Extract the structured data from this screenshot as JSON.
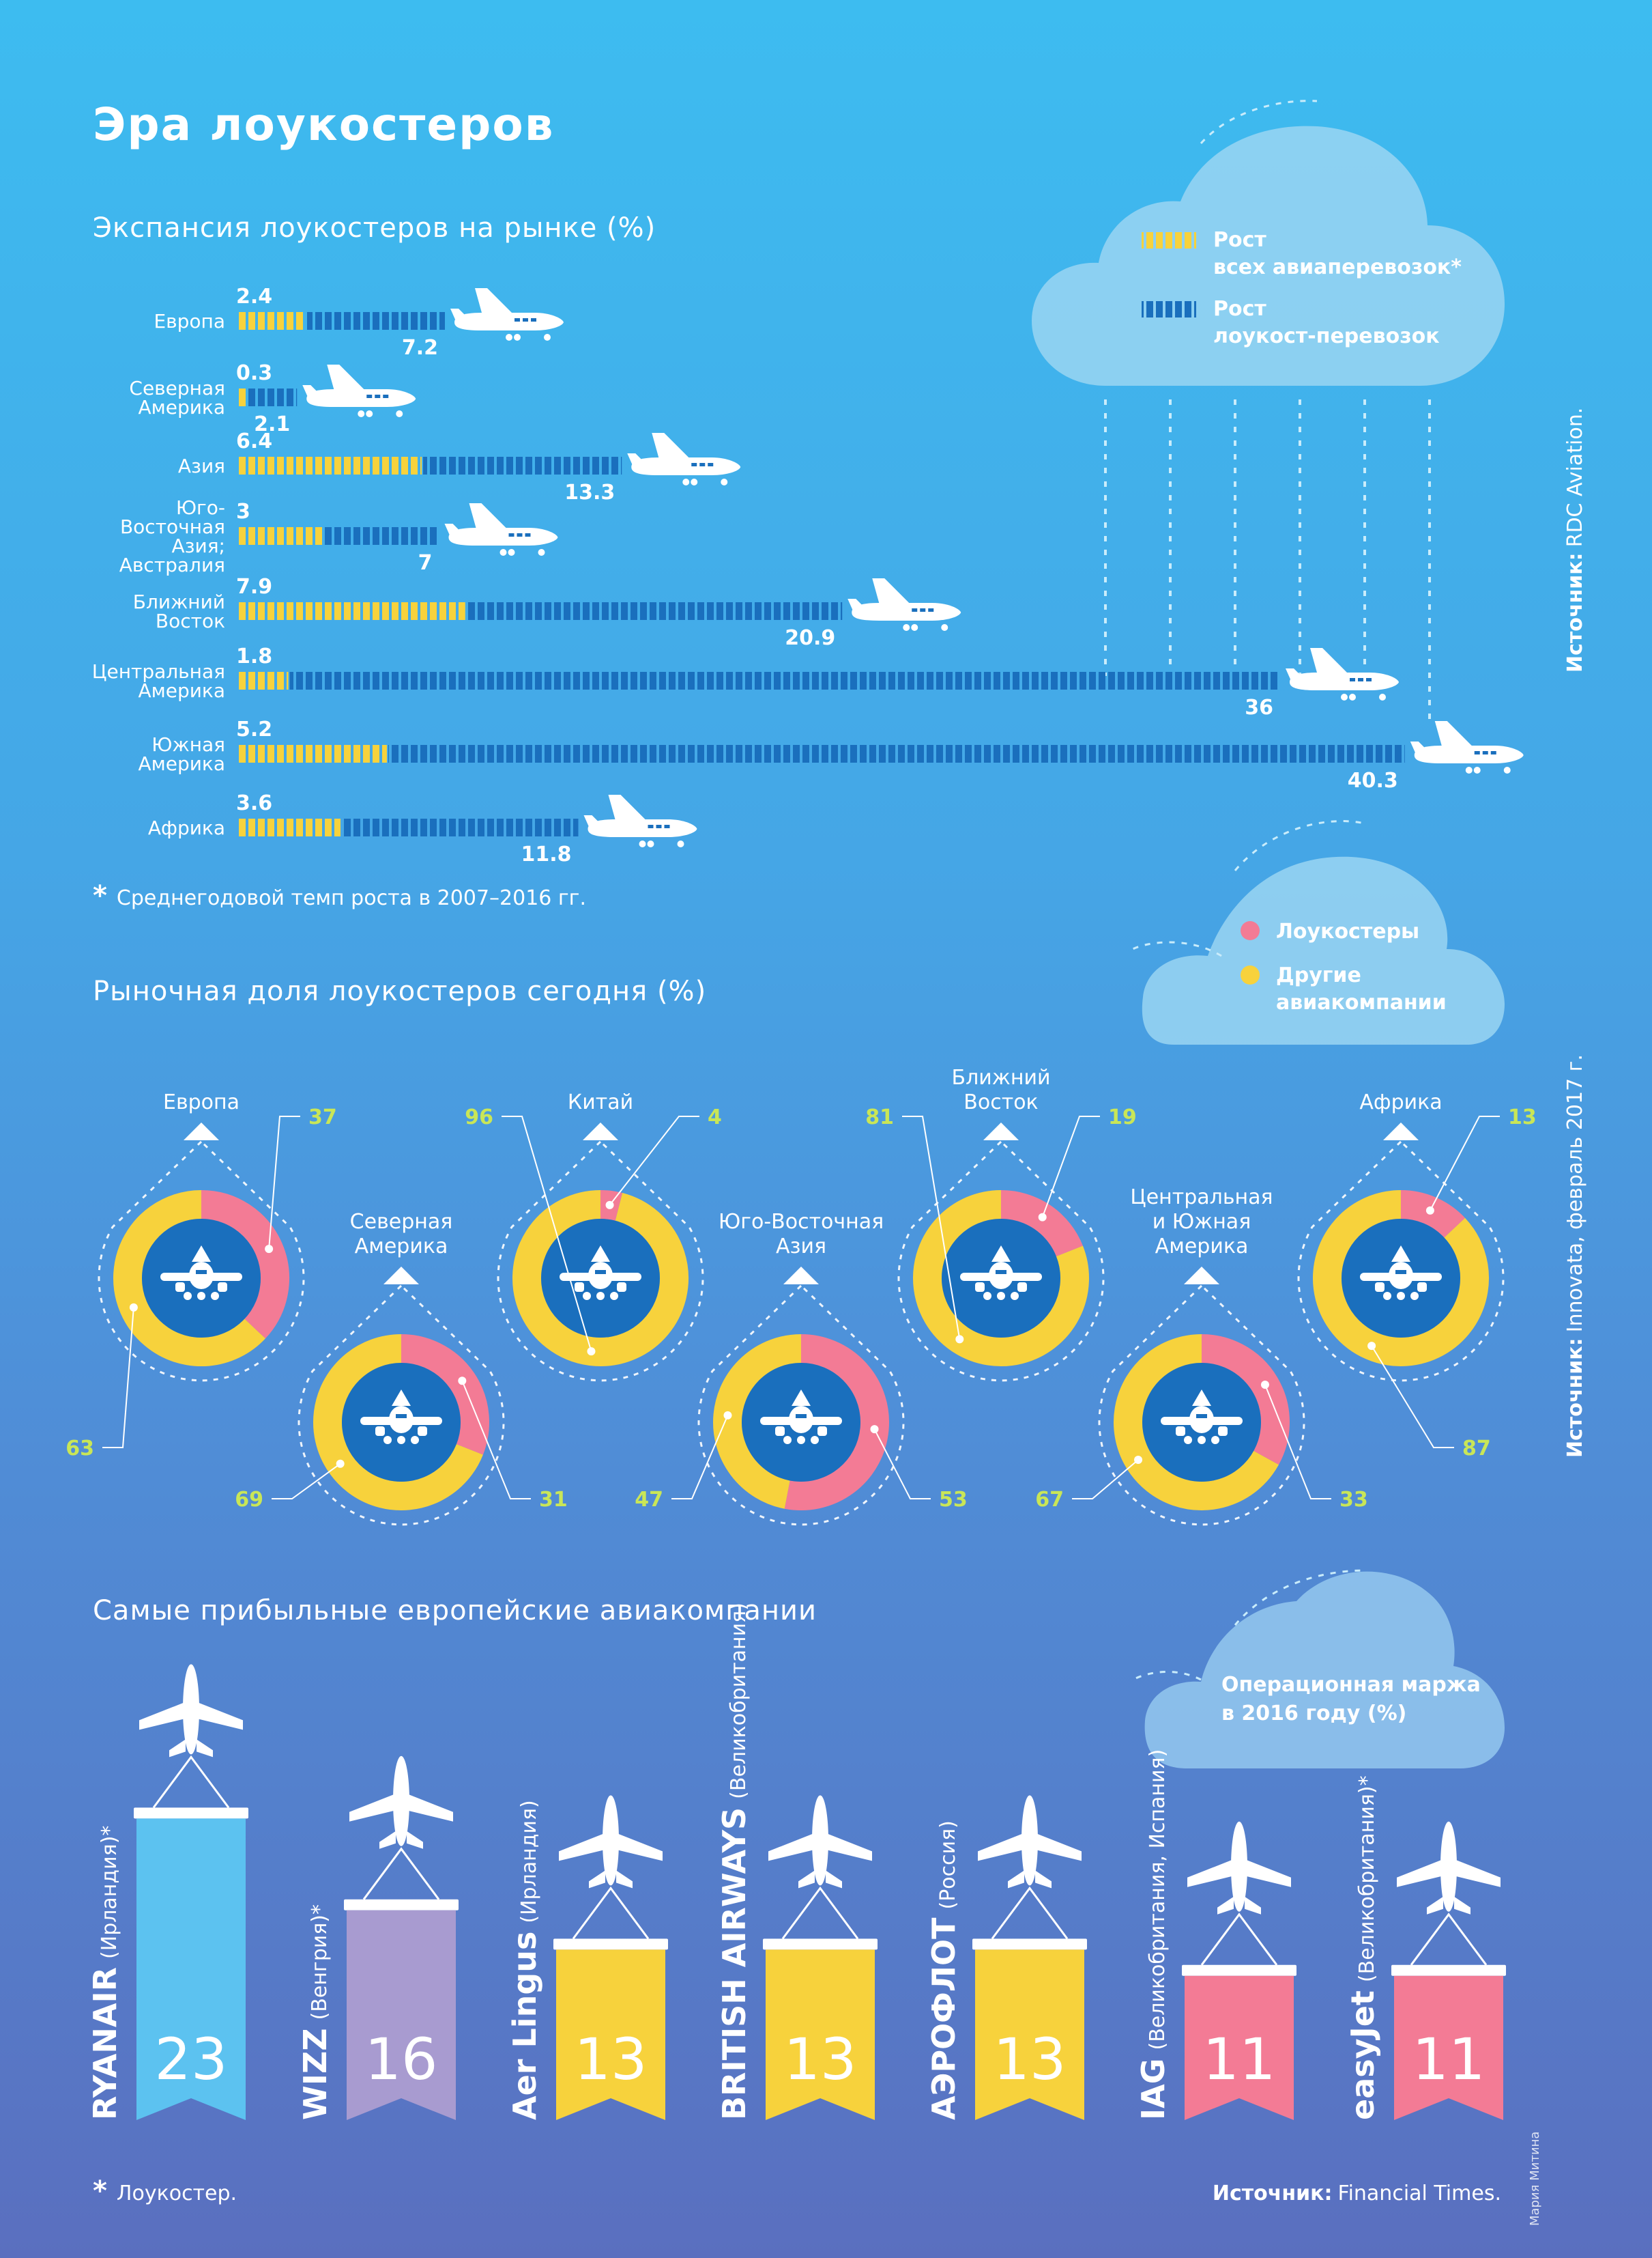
{
  "header": {
    "title": "Эра лоукостеров"
  },
  "section1": {
    "title": "Экспансия лоукостеров на рынке (%)",
    "legend": {
      "total_line1": "Рост",
      "total_line2": "всех авиаперевозок*",
      "lowcost_line1": "Рост",
      "lowcost_line2": "лоукост-перевозок"
    },
    "footnote_mark": "*",
    "footnote": "Среднегодовой темп роста в 2007–2016 гг."
  },
  "section2": {
    "title": "Рыночная доля лоукостеров сегодня (%)",
    "legend": {
      "lowcost": "Лоукостеры",
      "other_line1": "Другие",
      "other_line2": "авиакомпании"
    }
  },
  "section3": {
    "title": "Самые прибыльные европейские авиакомпании",
    "legend_line1": "Операционная маржа",
    "legend_line2": "в 2016 году (%)",
    "footnote_mark": "*",
    "footnote": "Лоукостер."
  },
  "sources": {
    "label": "Источник:",
    "s1": "RDC Aviation.",
    "s2": "Innovata, февраль 2017 г.",
    "s3": "Financial Times."
  },
  "credit": "Мария Митина",
  "colors": {
    "total_growth": "#f7d23c",
    "lowcost_growth": "#1a6fbd",
    "lowcost_share": "#f37b95",
    "other_share": "#f7d23c",
    "donut_center": "#1a6fbd",
    "value_labels": "#c9e657"
  },
  "chart_data": [
    {
      "type": "bar",
      "title": "Экспансия лоукостеров на рынке (%)",
      "categories": [
        [
          "Европа"
        ],
        [
          "Северная",
          "Америка"
        ],
        [
          "Азия"
        ],
        [
          "Юго-",
          "Восточная",
          "Азия;",
          "Австралия"
        ],
        [
          "Ближний",
          "Восток"
        ],
        [
          "Центральная",
          "Америка"
        ],
        [
          "Южная",
          "Америка"
        ],
        [
          "Африка"
        ]
      ],
      "series": [
        {
          "name": "Рост всех авиаперевозок*",
          "values": [
            2.4,
            0.3,
            6.4,
            3,
            7.9,
            1.8,
            5.2,
            3.6
          ]
        },
        {
          "name": "Рост лоукост-перевозок",
          "values": [
            7.2,
            2.1,
            13.3,
            7,
            20.9,
            36,
            40.3,
            11.8
          ]
        }
      ],
      "value_labels_total": [
        "2.4",
        "0.3",
        "6.4",
        "3",
        "7.9",
        "1.8",
        "5.2",
        "3.6"
      ],
      "value_labels_lowcost": [
        "7.2",
        "2.1",
        "13.3",
        "7",
        "20.9",
        "36",
        "40.3",
        "11.8"
      ]
    },
    {
      "type": "pie",
      "title": "Рыночная доля лоукостеров сегодня (%)",
      "series_names": [
        "Лоукостеры",
        "Другие авиакомпании"
      ],
      "regions": [
        {
          "label": [
            "Европа"
          ],
          "lowcost": 37,
          "other": 63
        },
        {
          "label": [
            "Северная",
            "Америка"
          ],
          "lowcost": 31,
          "other": 69
        },
        {
          "label": [
            "Китай"
          ],
          "lowcost": 4,
          "other": 96
        },
        {
          "label": [
            "Юго-Восточная",
            "Азия"
          ],
          "lowcost": 53,
          "other": 47
        },
        {
          "label": [
            "Ближний",
            "Восток"
          ],
          "lowcost": 19,
          "other": 81
        },
        {
          "label": [
            "Центральная",
            "и Южная",
            "Америка"
          ],
          "lowcost": 33,
          "other": 67
        },
        {
          "label": [
            "Африка"
          ],
          "lowcost": 13,
          "other": 87
        }
      ]
    },
    {
      "type": "bar",
      "title": "Самые прибыльные европейские авиакомпании",
      "subtitle": "Операционная маржа в 2016 году (%)",
      "airlines": [
        {
          "name": "RYANAIR",
          "country": "(Ирландия)",
          "mark": "*",
          "margin": 23,
          "color": "#5cc2f0"
        },
        {
          "name": "WIZZ",
          "country": "(Венгрия)",
          "mark": "*",
          "margin": 16,
          "color": "#a89bd0"
        },
        {
          "name": "Aer Lingus",
          "country": "(Ирландия)",
          "mark": "",
          "margin": 13,
          "color": "#f7d23c"
        },
        {
          "name": "BRITISH AIRWAYS",
          "country": "(Великобритания)",
          "mark": "",
          "margin": 13,
          "color": "#f7d23c"
        },
        {
          "name": "АЭРОФЛОТ",
          "country": "(Россия)",
          "mark": "",
          "margin": 13,
          "color": "#f7d23c"
        },
        {
          "name": "IAG",
          "country": "(Великобритания, Испания)",
          "mark": "",
          "margin": 11,
          "color": "#f37b95"
        },
        {
          "name": "easyJet",
          "country": "(Великобритания)",
          "mark": "*",
          "margin": 11,
          "color": "#f37b95"
        }
      ]
    }
  ]
}
